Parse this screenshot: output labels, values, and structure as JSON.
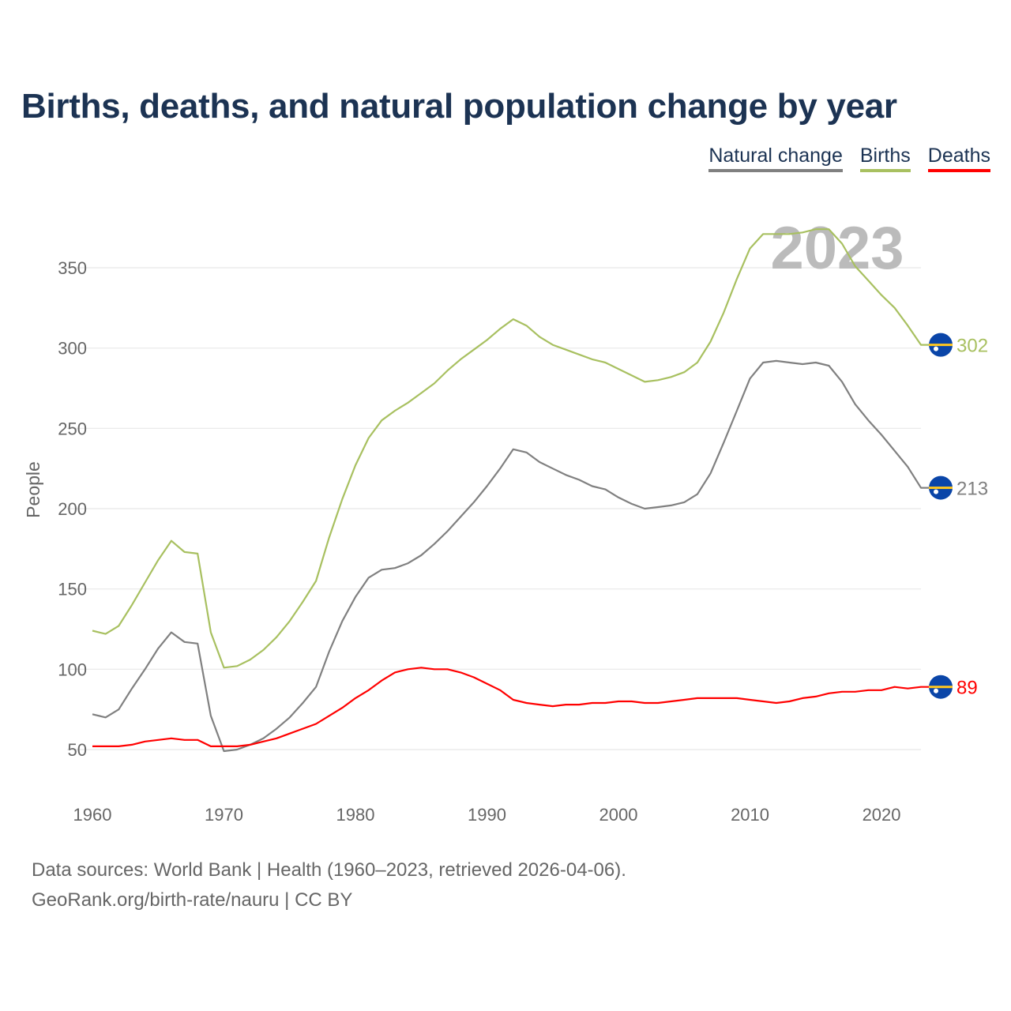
{
  "chart_data": {
    "type": "line",
    "title": "Births, deaths, and natural population change by year",
    "xlabel": "",
    "ylabel": "People",
    "xlim": [
      1960,
      2023
    ],
    "ylim": [
      50,
      350
    ],
    "yticks": [
      50,
      100,
      150,
      200,
      250,
      300,
      350
    ],
    "xticks": [
      1960,
      1970,
      1980,
      1990,
      2000,
      2010,
      2020
    ],
    "grid": true,
    "legend_position": "top-right",
    "year_watermark": "2023",
    "x": [
      1960,
      1961,
      1962,
      1963,
      1964,
      1965,
      1966,
      1967,
      1968,
      1969,
      1970,
      1971,
      1972,
      1973,
      1974,
      1975,
      1976,
      1977,
      1978,
      1979,
      1980,
      1981,
      1982,
      1983,
      1984,
      1985,
      1986,
      1987,
      1988,
      1989,
      1990,
      1991,
      1992,
      1993,
      1994,
      1995,
      1996,
      1997,
      1998,
      1999,
      2000,
      2001,
      2002,
      2003,
      2004,
      2005,
      2006,
      2007,
      2008,
      2009,
      2010,
      2011,
      2012,
      2013,
      2014,
      2015,
      2016,
      2017,
      2018,
      2019,
      2020,
      2021,
      2022,
      2023
    ],
    "series": [
      {
        "name": "Natural change",
        "color": "#808080",
        "end_label": "213",
        "values": [
          72,
          70,
          75,
          88,
          100,
          113,
          123,
          117,
          116,
          71,
          49,
          50,
          53,
          57,
          63,
          70,
          79,
          89,
          111,
          130,
          145,
          157,
          162,
          163,
          166,
          171,
          178,
          186,
          195,
          204,
          214,
          225,
          237,
          235,
          229,
          225,
          221,
          218,
          214,
          212,
          207,
          203,
          200,
          201,
          202,
          204,
          209,
          222,
          241,
          261,
          281,
          291,
          292,
          291,
          290,
          291,
          289,
          279,
          265,
          255,
          246,
          236,
          226,
          213
        ]
      },
      {
        "name": "Births",
        "color": "#a8c060",
        "end_label": "302",
        "values": [
          124,
          122,
          127,
          140,
          154,
          168,
          180,
          173,
          172,
          123,
          101,
          102,
          106,
          112,
          120,
          130,
          142,
          155,
          182,
          206,
          227,
          244,
          255,
          261,
          266,
          272,
          278,
          286,
          293,
          299,
          305,
          312,
          318,
          314,
          307,
          302,
          299,
          296,
          293,
          291,
          287,
          283,
          279,
          280,
          282,
          285,
          291,
          304,
          322,
          343,
          362,
          371,
          371,
          371,
          372,
          374,
          374,
          365,
          351,
          342,
          333,
          325,
          314,
          302
        ]
      },
      {
        "name": "Deaths",
        "color": "#ff0000",
        "end_label": "89",
        "values": [
          52,
          52,
          52,
          53,
          55,
          56,
          57,
          56,
          56,
          52,
          52,
          52,
          53,
          55,
          57,
          60,
          63,
          66,
          71,
          76,
          82,
          87,
          93,
          98,
          100,
          101,
          100,
          100,
          98,
          95,
          91,
          87,
          81,
          79,
          78,
          77,
          78,
          78,
          79,
          79,
          80,
          80,
          79,
          79,
          80,
          81,
          82,
          82,
          82,
          82,
          81,
          80,
          79,
          80,
          82,
          83,
          85,
          86,
          86,
          87,
          87,
          89,
          88,
          89
        ]
      }
    ]
  },
  "footer": {
    "line1": "Data sources: World Bank | Health (1960–2023, retrieved 2026-04-06).",
    "line2": "GeoRank.org/birth-rate/nauru | CC BY"
  }
}
